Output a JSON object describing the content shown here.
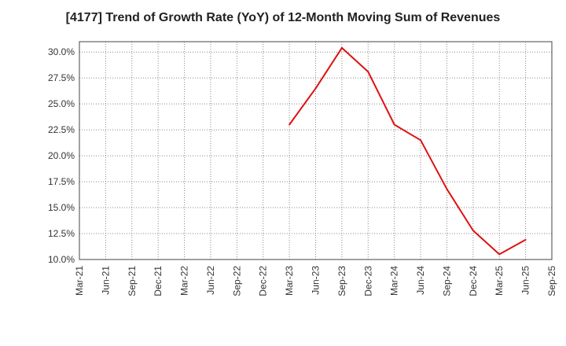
{
  "chart_data": {
    "type": "line",
    "title": "[4177]  Trend of Growth Rate (YoY) of 12-Month Moving Sum of Revenues",
    "xlabel": "",
    "ylabel": "",
    "x_ticks": [
      "Mar-21",
      "Jun-21",
      "Sep-21",
      "Dec-21",
      "Mar-22",
      "Jun-22",
      "Sep-22",
      "Dec-22",
      "Mar-23",
      "Jun-23",
      "Sep-23",
      "Dec-23",
      "Mar-24",
      "Jun-24",
      "Sep-24",
      "Dec-24",
      "Mar-25",
      "Jun-25",
      "Sep-25"
    ],
    "y_ticks": [
      "10.0%",
      "12.5%",
      "15.0%",
      "17.5%",
      "20.0%",
      "22.5%",
      "25.0%",
      "27.5%",
      "30.0%"
    ],
    "ylim": [
      10.0,
      31.0
    ],
    "grid": true,
    "series": [
      {
        "color": "#dd1111",
        "x": [
          "Mar-23",
          "Jun-23",
          "Sep-23",
          "Dec-23",
          "Mar-24",
          "Jun-24",
          "Sep-24",
          "Dec-24",
          "Mar-25",
          "Jun-25"
        ],
        "values": [
          23.0,
          26.5,
          30.4,
          28.1,
          23.0,
          21.5,
          16.8,
          12.8,
          10.5,
          11.9
        ]
      }
    ]
  }
}
